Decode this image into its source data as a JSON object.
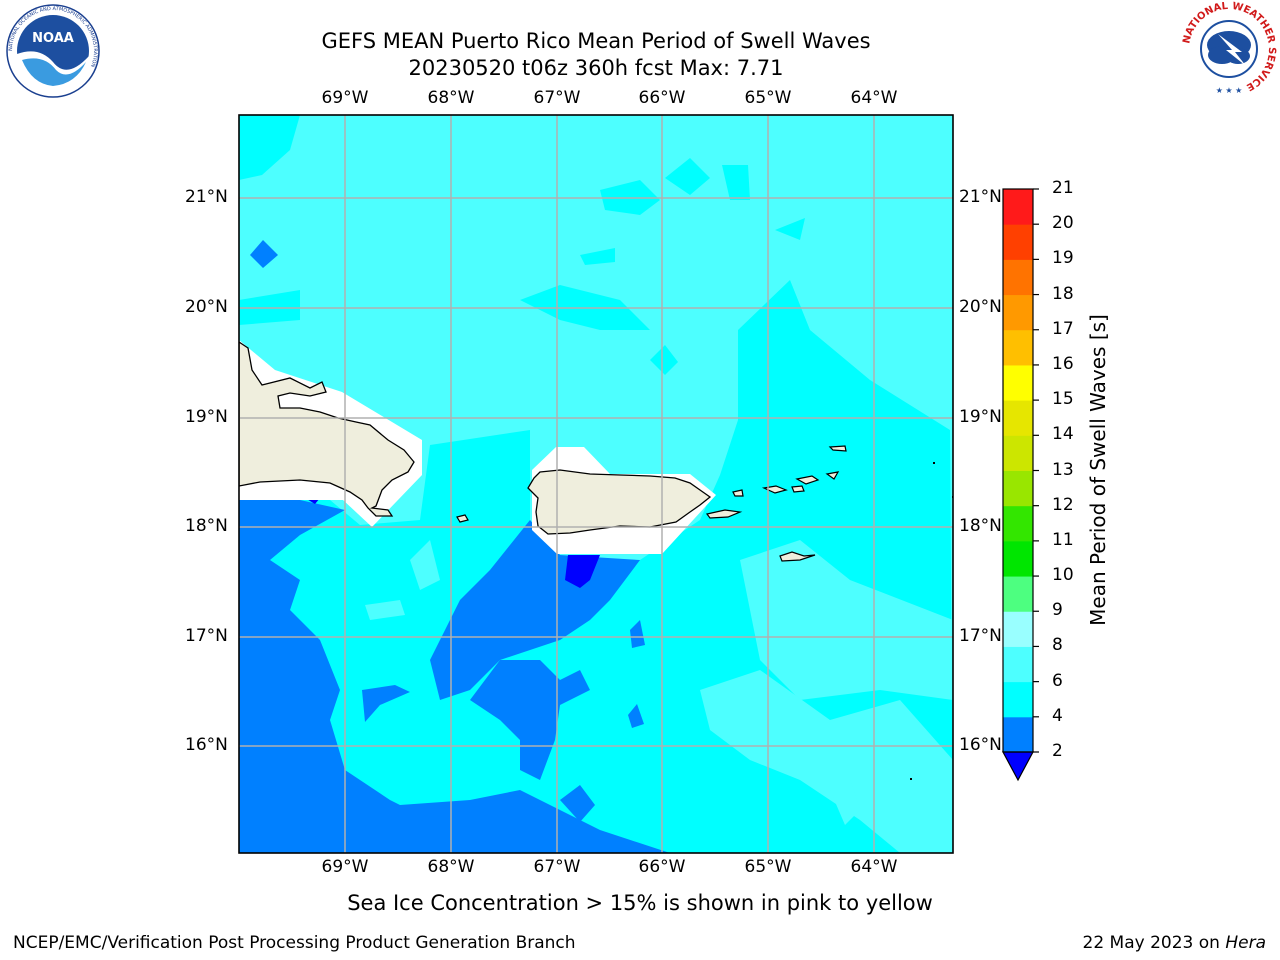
{
  "header": {
    "title_line1": "GEFS MEAN Puerto Rico Mean Period of Swell Waves",
    "title_line2": "20230520 t06z 360h fcst   Max: 7.71"
  },
  "map": {
    "lon_labels": [
      "69°W",
      "68°W",
      "67°W",
      "66°W",
      "65°W",
      "64°W"
    ],
    "lat_labels": [
      "21°N",
      "20°N",
      "19°N",
      "18°N",
      "17°N",
      "16°N"
    ]
  },
  "colorbar": {
    "label": "Mean Period of Swell Waves [s]",
    "ticks": [
      "2",
      "4",
      "6",
      "8",
      "9",
      "10",
      "11",
      "12",
      "13",
      "14",
      "15",
      "16",
      "17",
      "18",
      "19",
      "20",
      "21"
    ],
    "colors": [
      "#0000ff",
      "#0080ff",
      "#00ffff",
      "#4dffff",
      "#99ffff",
      "#4dff80",
      "#00e600",
      "#33e600",
      "#99e600",
      "#cce600",
      "#e6e600",
      "#ffff00",
      "#ffbf00",
      "#ff9900",
      "#ff7300",
      "#ff4000",
      "#ff1a1a",
      "#ff0000"
    ],
    "under_color": "#0000ff"
  },
  "colors": {
    "land": "#efeedd",
    "ocean_light": "#4dffff",
    "ocean_cyan": "#00ffff",
    "ocean_blue": "#0080ff",
    "ocean_deep": "#0000ff",
    "grid": "#b0b0b0"
  },
  "footer": {
    "note": "Sea Ice Concentration > 15% is shown in pink to yellow",
    "credit": "NCEP/EMC/Verification Post Processing Product Generation Branch",
    "date": "22 May 2023 on ",
    "host": "Hera"
  },
  "logos": {
    "noaa_text": "NOAA",
    "noaa_ring": "NATIONAL OCEANIC AND ATMOSPHERIC ADMINISTRATION",
    "nws_ring": "NATIONAL WEATHER SERVICE"
  }
}
